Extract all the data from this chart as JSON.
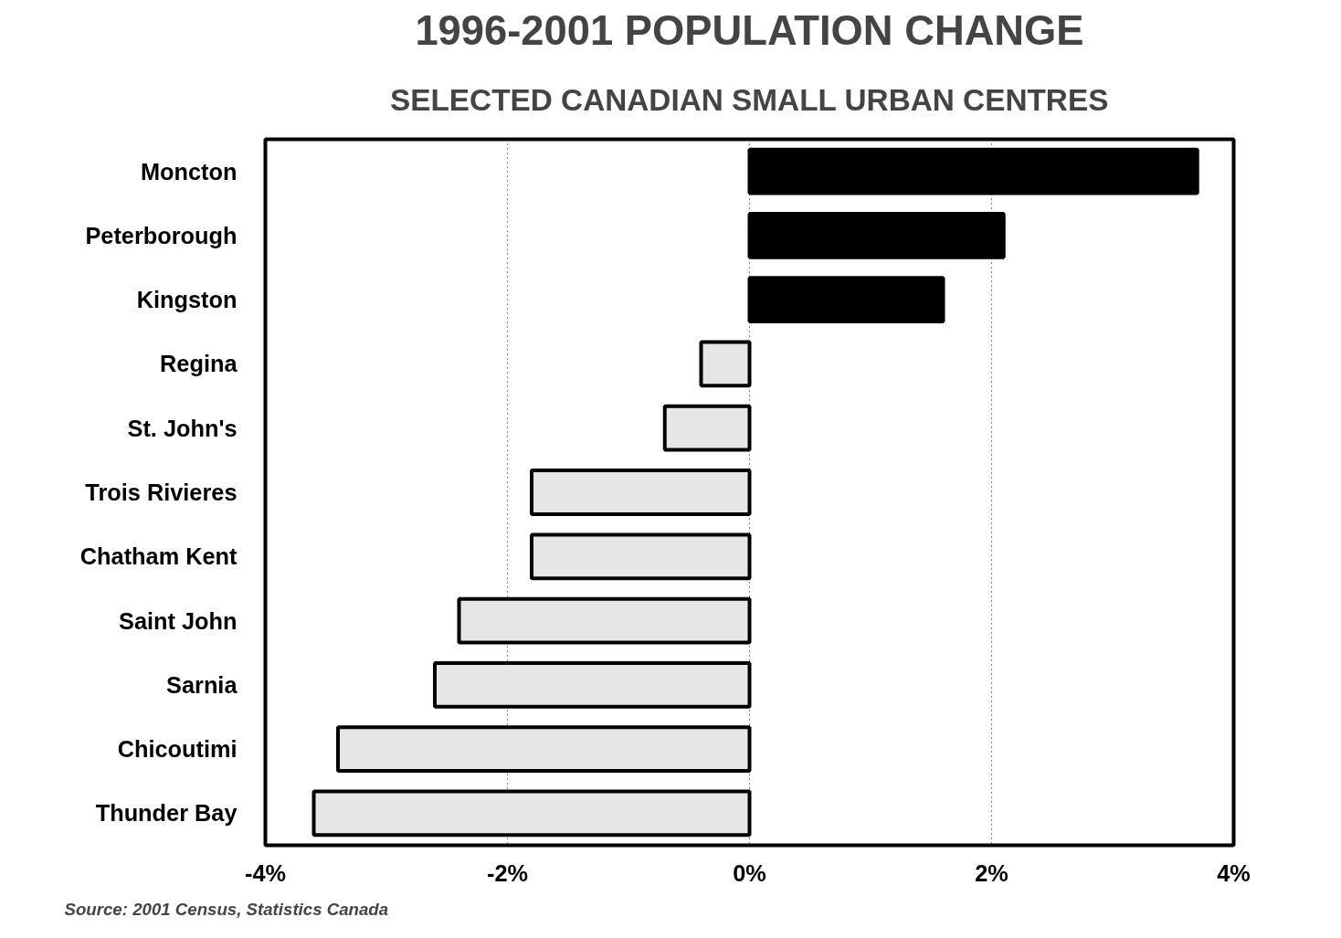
{
  "chart_data": {
    "type": "bar",
    "orientation": "horizontal",
    "title": "1996-2001 POPULATION CHANGE",
    "subtitle": "SELECTED CANADIAN SMALL URBAN CENTRES",
    "categories": [
      "Moncton",
      "Peterborough",
      "Kingston",
      "Regina",
      "St. John's",
      "Trois Rivieres",
      "Chatham Kent",
      "Saint John",
      "Sarnia",
      "Chicoutimi",
      "Thunder Bay"
    ],
    "values": [
      3.7,
      2.1,
      1.6,
      -0.4,
      -0.7,
      -1.8,
      -1.8,
      -2.4,
      -2.6,
      -3.4,
      -3.6
    ],
    "colors": [
      "#000000",
      "#000000",
      "#000000",
      "#e6e6e6",
      "#e6e6e6",
      "#e6e6e6",
      "#e6e6e6",
      "#e6e6e6",
      "#e6e6e6",
      "#e6e6e6",
      "#e6e6e6"
    ],
    "xlim": [
      -4,
      4
    ],
    "xticks": [
      {
        "value": -4,
        "label": "-4%"
      },
      {
        "value": -2,
        "label": "-2%"
      },
      {
        "value": 0,
        "label": "0%"
      },
      {
        "value": 2,
        "label": "2%"
      },
      {
        "value": 4,
        "label": "4%"
      }
    ],
    "grid": "x",
    "line_style": "dotted",
    "annotations": [
      "Source: 2001 Census, Statistics Canada"
    ]
  }
}
